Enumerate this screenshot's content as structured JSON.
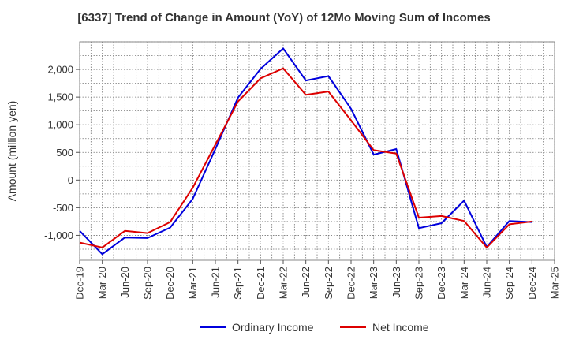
{
  "chart_data": {
    "type": "line",
    "title": "[6337]  Trend of Change in Amount (YoY) of 12Mo Moving Sum of Incomes",
    "ylabel": "Amount (million yen)",
    "xlabel": "",
    "ylim": [
      -1450,
      2500
    ],
    "yticks": [
      -1000,
      -500,
      0,
      500,
      1000,
      1500,
      2000
    ],
    "ytick_labels": [
      "-1,000",
      "-500",
      "0",
      "500",
      "1,000",
      "1,500",
      "2,000"
    ],
    "x": [
      "Dec-19",
      "Mar-20",
      "Jun-20",
      "Sep-20",
      "Dec-20",
      "Mar-21",
      "Jun-21",
      "Sep-21",
      "Dec-21",
      "Mar-22",
      "Jun-22",
      "Sep-22",
      "Dec-22",
      "Mar-23",
      "Jun-23",
      "Sep-23",
      "Dec-23",
      "Mar-24",
      "Jun-24",
      "Sep-24",
      "Dec-24",
      "Mar-25"
    ],
    "grid": true,
    "legend_position": "bottom-center",
    "series": [
      {
        "name": "Ordinary Income",
        "color": "#0000dd",
        "values": [
          -920,
          -1340,
          -1040,
          -1050,
          -860,
          -340,
          560,
          1490,
          2010,
          2380,
          1800,
          1880,
          1290,
          460,
          560,
          -870,
          -780,
          -370,
          -1210,
          -740,
          -760,
          null
        ]
      },
      {
        "name": "Net Income",
        "color": "#dd0000",
        "values": [
          -1130,
          -1220,
          -920,
          -960,
          -760,
          -140,
          640,
          1420,
          1840,
          2020,
          1540,
          1600,
          1080,
          540,
          480,
          -680,
          -650,
          -740,
          -1220,
          -800,
          -750,
          null
        ]
      }
    ]
  }
}
